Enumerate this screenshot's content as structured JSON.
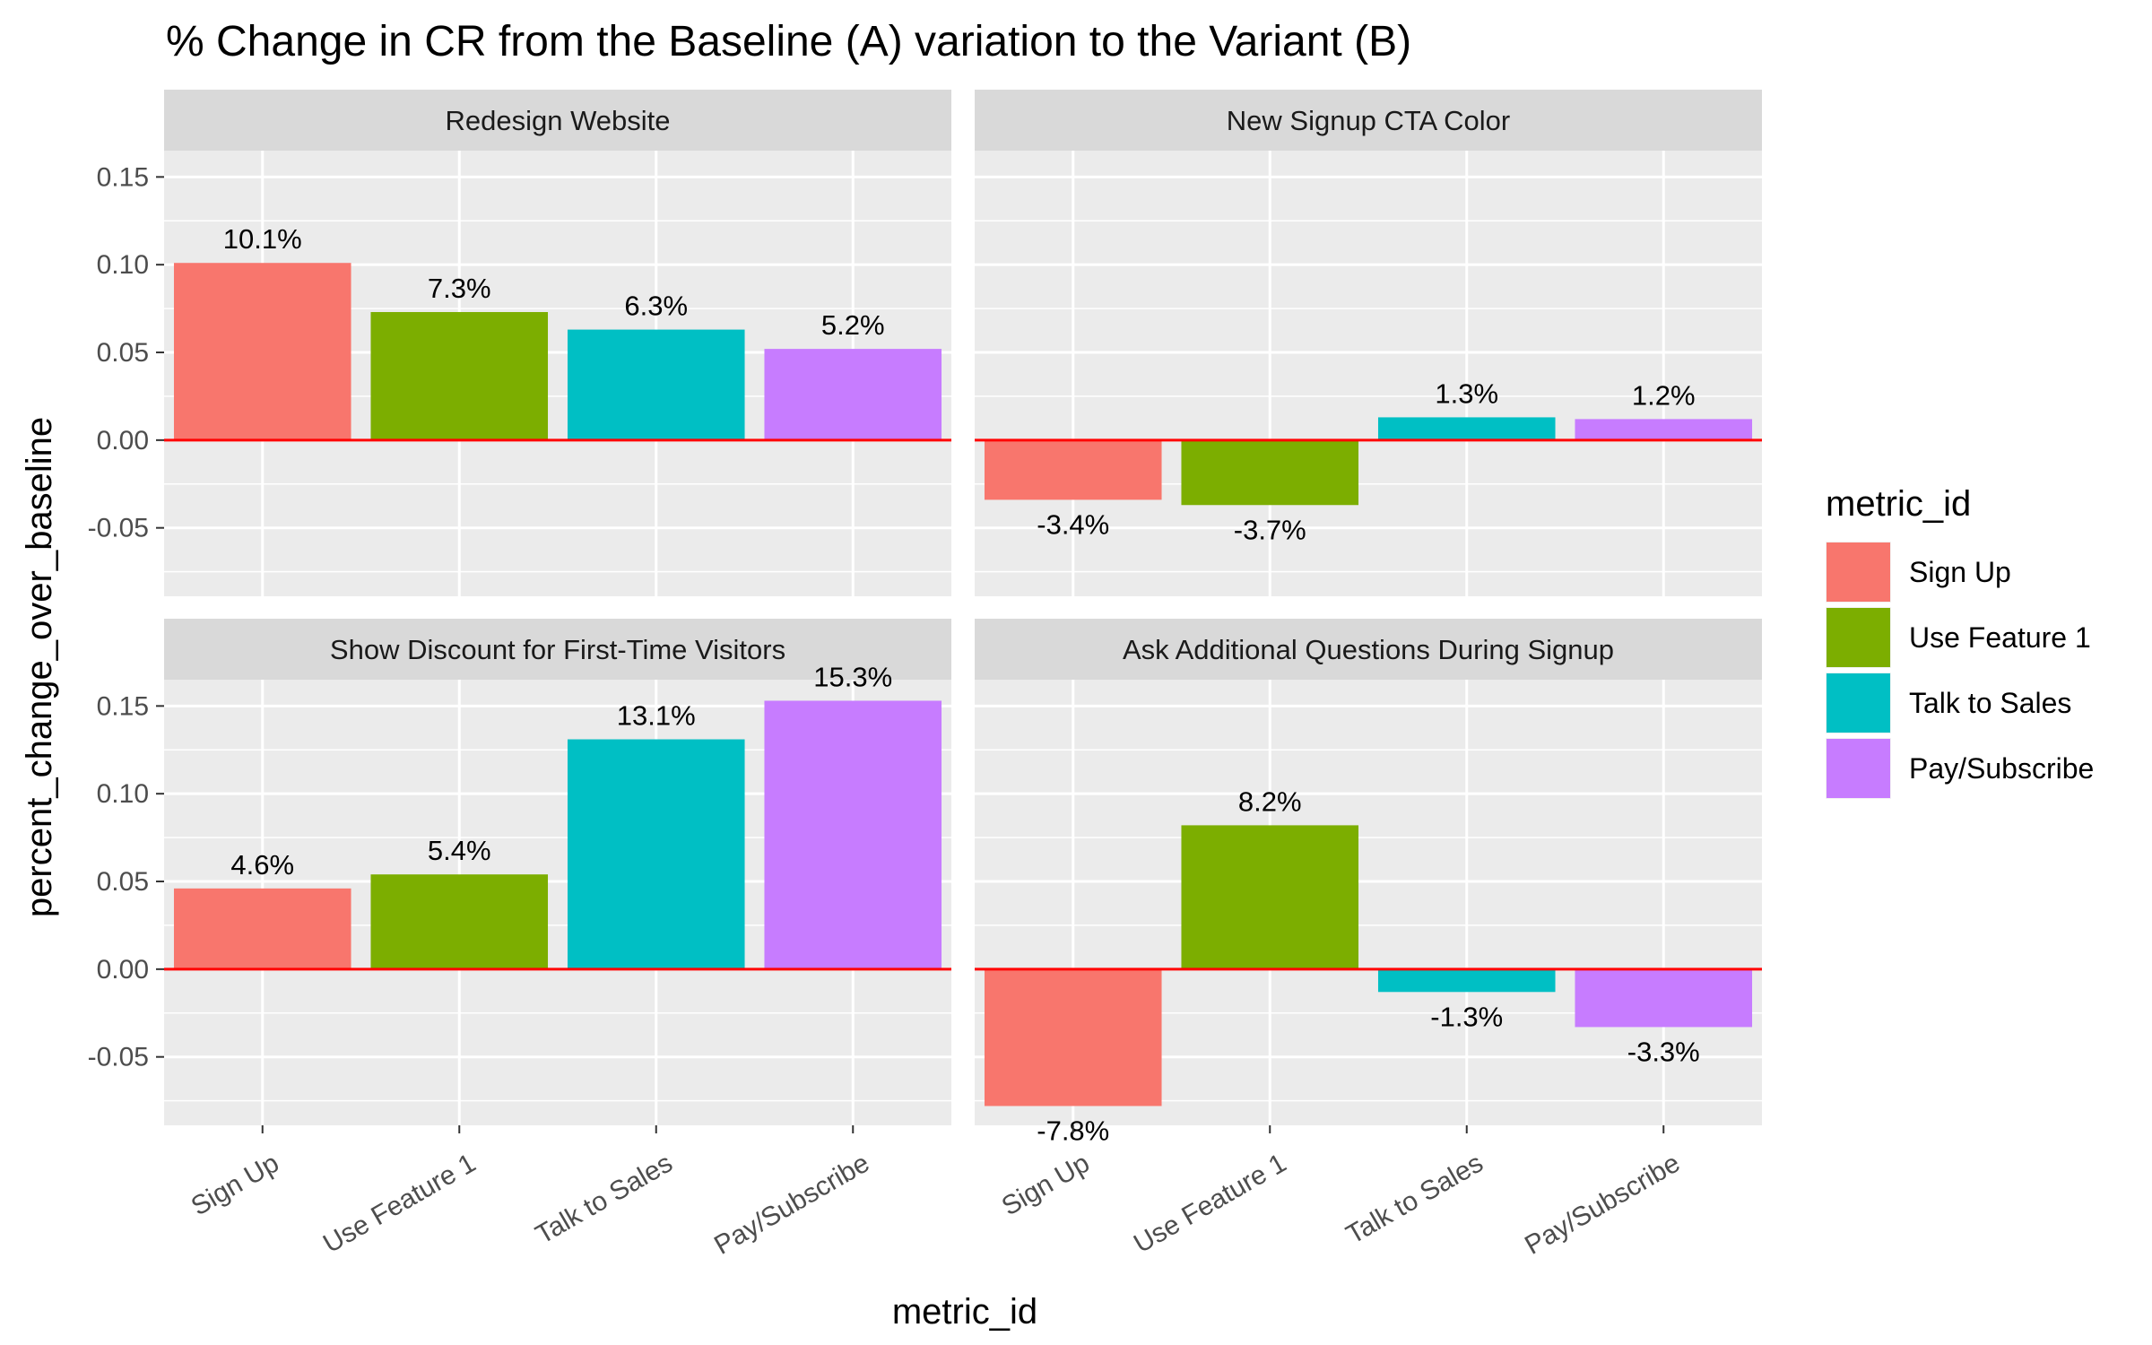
{
  "chart_data": {
    "type": "bar",
    "title": "% Change in CR from the Baseline (A) variation to the Variant (B)",
    "xlabel": "metric_id",
    "ylabel": "percent_change_over_baseline",
    "categories": [
      "Sign Up",
      "Use Feature 1",
      "Talk to Sales",
      "Pay/Subscribe"
    ],
    "ylim": [
      -0.089,
      0.165
    ],
    "y_ticks": [
      {
        "value": -0.05,
        "label": "-0.05"
      },
      {
        "value": 0.0,
        "label": "0.00"
      },
      {
        "value": 0.05,
        "label": "0.05"
      },
      {
        "value": 0.1,
        "label": "0.10"
      },
      {
        "value": 0.15,
        "label": "0.15"
      }
    ],
    "reference_line": {
      "value": 0,
      "color": "#ff0000"
    },
    "grid": true,
    "legend": {
      "title": "metric_id",
      "placement": "right",
      "items": [
        {
          "label": "Sign Up",
          "color": "#F8766D"
        },
        {
          "label": "Use Feature 1",
          "color": "#7CAE00"
        },
        {
          "label": "Talk to Sales",
          "color": "#00BFC4"
        },
        {
          "label": "Pay/Subscribe",
          "color": "#C77CFF"
        }
      ]
    },
    "series_colors": [
      "#F8766D",
      "#7CAE00",
      "#00BFC4",
      "#C77CFF"
    ],
    "panels": [
      {
        "title": "Redesign Website",
        "values": [
          0.101,
          0.073,
          0.063,
          0.052
        ],
        "labels": [
          "10.1%",
          "7.3%",
          "6.3%",
          "5.2%"
        ]
      },
      {
        "title": "New Signup CTA Color",
        "values": [
          -0.034,
          -0.037,
          0.013,
          0.012
        ],
        "labels": [
          "-3.4%",
          "-3.7%",
          "1.3%",
          "1.2%"
        ]
      },
      {
        "title": "Show Discount for First-Time Visitors",
        "values": [
          0.046,
          0.054,
          0.131,
          0.153
        ],
        "labels": [
          "4.6%",
          "5.4%",
          "13.1%",
          "15.3%"
        ]
      },
      {
        "title": "Ask Additional Questions During Signup",
        "values": [
          -0.078,
          0.082,
          -0.013,
          -0.033
        ],
        "labels": [
          "-7.8%",
          "8.2%",
          "-1.3%",
          "-3.3%"
        ]
      }
    ]
  }
}
